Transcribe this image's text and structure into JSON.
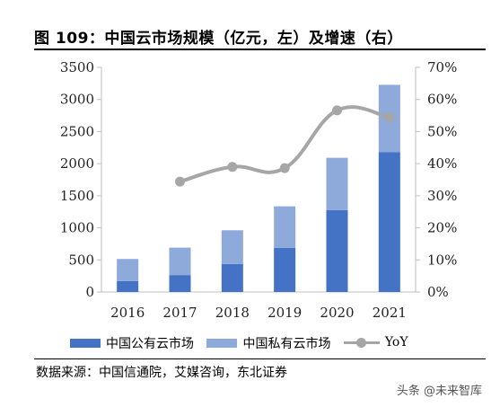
{
  "title": "图 109：中国云市场规模（亿元，左）及增速（右）",
  "source": "数据来源：中国信通院，艾媒咨询，东北证券",
  "watermark": "头条 @未来智库",
  "colors": {
    "public": "#4472c4",
    "private": "#8eaadb",
    "yoy": "#a6a6a6"
  },
  "chart_data": {
    "type": "bar",
    "stacked": true,
    "categories": [
      "2016",
      "2017",
      "2018",
      "2019",
      "2020",
      "2021"
    ],
    "series": [
      {
        "name": "中国公有云市场",
        "values": [
          170,
          264,
          437,
          689,
          1277,
          2181
        ]
      },
      {
        "name": "中国私有云市场",
        "values": [
          345,
          427,
          525,
          646,
          814,
          1047
        ]
      }
    ],
    "line_series": {
      "name": "YoY",
      "axis": "right",
      "values": [
        null,
        34.4,
        39.0,
        38.6,
        56.6,
        54.4
      ]
    },
    "ylim": [
      0,
      3500
    ],
    "yticks": [
      "0",
      "500",
      "1000",
      "1500",
      "2000",
      "2500",
      "3000",
      "3500"
    ],
    "y2lim": [
      0,
      70
    ],
    "y2ticks": [
      "0%",
      "10%",
      "20%",
      "30%",
      "40%",
      "50%",
      "60%",
      "70%"
    ],
    "grid": false,
    "legend": "bottom"
  }
}
